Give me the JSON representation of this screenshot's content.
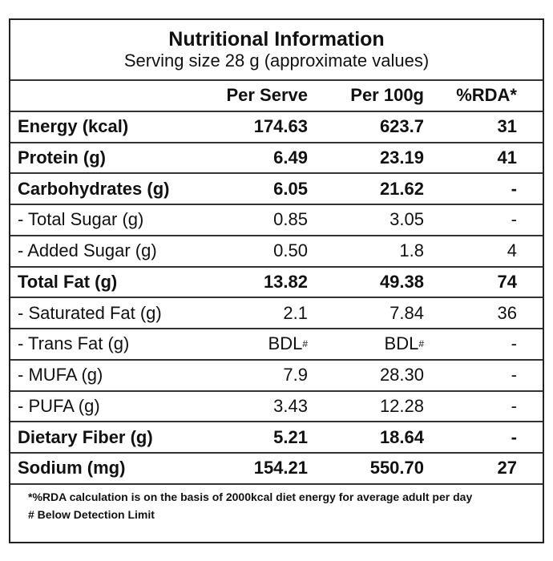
{
  "header": {
    "title": "Nutritional Information",
    "subtitle": "Serving size 28 g (approximate values)"
  },
  "table": {
    "columns": [
      "Per Serve",
      "Per 100g",
      "%RDA*"
    ],
    "rows": [
      {
        "label": "Energy (kcal)",
        "bold": true,
        "cells": [
          "174.63",
          "623.7",
          "31"
        ]
      },
      {
        "label": "Protein (g)",
        "bold": true,
        "cells": [
          "6.49",
          "23.19",
          "41"
        ]
      },
      {
        "label": "Carbohydrates (g)",
        "bold": true,
        "cells": [
          "6.05",
          "21.62",
          "-"
        ]
      },
      {
        "label": "- Total Sugar (g)",
        "bold": false,
        "cells": [
          "0.85",
          "3.05",
          "-"
        ]
      },
      {
        "label": "- Added Sugar (g)",
        "bold": false,
        "cells": [
          "0.50",
          "1.8",
          "4"
        ]
      },
      {
        "label": "Total Fat (g)",
        "bold": true,
        "cells": [
          "13.82",
          "49.38",
          "74"
        ]
      },
      {
        "label": "- Saturated Fat (g)",
        "bold": false,
        "cells": [
          "2.1",
          "7.84",
          "36"
        ]
      },
      {
        "label": "- Trans Fat (g)",
        "bold": false,
        "cells": [
          {
            "text": "BDL",
            "sup": "#"
          },
          {
            "text": "BDL",
            "sup": "#"
          },
          "-"
        ]
      },
      {
        "label": "- MUFA (g)",
        "bold": false,
        "cells": [
          "7.9",
          "28.30",
          "-"
        ]
      },
      {
        "label": "- PUFA (g)",
        "bold": false,
        "cells": [
          "3.43",
          "12.28",
          "-"
        ]
      },
      {
        "label": "Dietary Fiber (g)",
        "bold": true,
        "cells": [
          "5.21",
          "18.64",
          "-"
        ]
      },
      {
        "label": "Sodium (mg)",
        "bold": true,
        "cells": [
          "154.21",
          "550.70",
          "27"
        ]
      }
    ]
  },
  "footnotes": [
    "*%RDA calculation is on the basis of 2000kcal diet energy for average adult per day",
    "# Below Detection Limit"
  ]
}
